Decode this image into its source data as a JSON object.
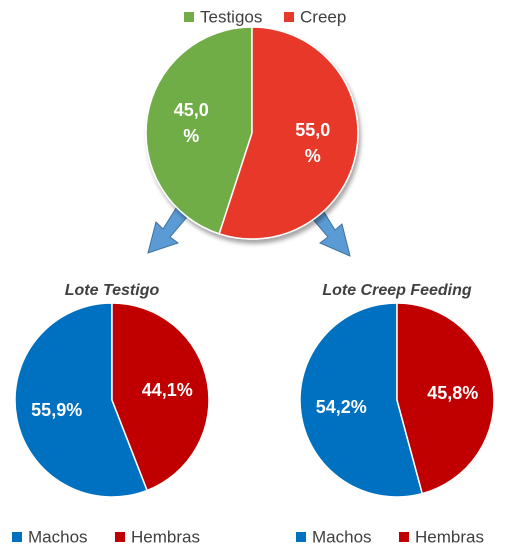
{
  "chart_data": [
    {
      "type": "pie",
      "categories": [
        "Testigos",
        "Creep"
      ],
      "values": [
        45.0,
        55.0
      ],
      "value_labels": [
        "45,0 %",
        "55,0 %"
      ],
      "colors": [
        "#70ad47",
        "#e8392b"
      ]
    },
    {
      "type": "pie",
      "title": "Lote Testigo",
      "categories": [
        "Machos",
        "Hembras"
      ],
      "values": [
        55.9,
        44.1
      ],
      "value_labels": [
        "55,9%",
        "44,1%"
      ],
      "colors": [
        "#0070c0",
        "#c00000"
      ]
    },
    {
      "type": "pie",
      "title": "Lote Creep Feeding",
      "categories": [
        "Machos",
        "Hembras"
      ],
      "values": [
        54.2,
        45.8
      ],
      "value_labels": [
        "54,2%",
        "45,8%"
      ],
      "colors": [
        "#0070c0",
        "#c00000"
      ]
    }
  ]
}
